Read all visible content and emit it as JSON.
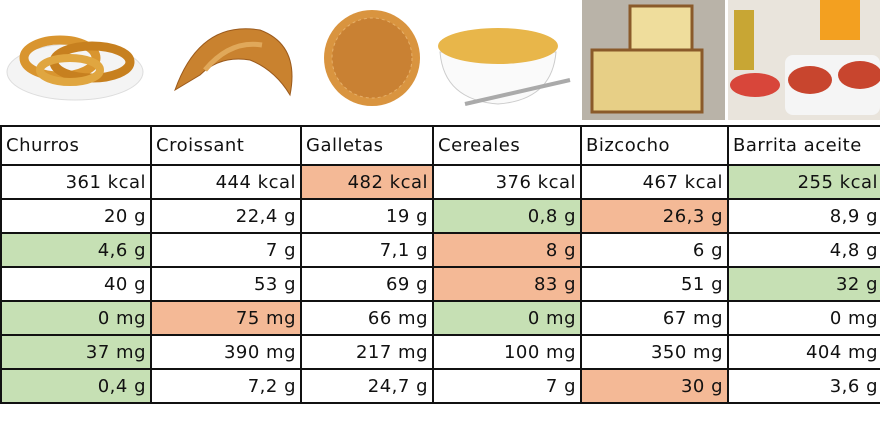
{
  "table": {
    "header": [
      "Churros",
      "Croissant",
      "Galletas",
      "Cereales",
      "Bizcocho",
      "Barrita aceite"
    ],
    "rows": [
      [
        "361 kcal",
        "444 kcal",
        "482 kcal",
        "376 kcal",
        "467 kcal",
        "255 kcal"
      ],
      [
        "20 g",
        "22,4 g",
        "19 g",
        "0,8 g",
        "26,3 g",
        "8,9 g"
      ],
      [
        "4,6 g",
        "7 g",
        "7,1 g",
        "8 g",
        "6 g",
        "4,8 g"
      ],
      [
        "40 g",
        "53 g",
        "69 g",
        "83 g",
        "51 g",
        "32 g"
      ],
      [
        "0 mg",
        "75 mg",
        "66 mg",
        "0 mg",
        "67 mg",
        "0 mg"
      ],
      [
        "37 mg",
        "390 mg",
        "217 mg",
        "100 mg",
        "350 mg",
        "404 mg"
      ],
      [
        "0,4 g",
        "7,2 g",
        "24,7 g",
        "7 g",
        "30 g",
        "3,6 g"
      ]
    ]
  }
}
